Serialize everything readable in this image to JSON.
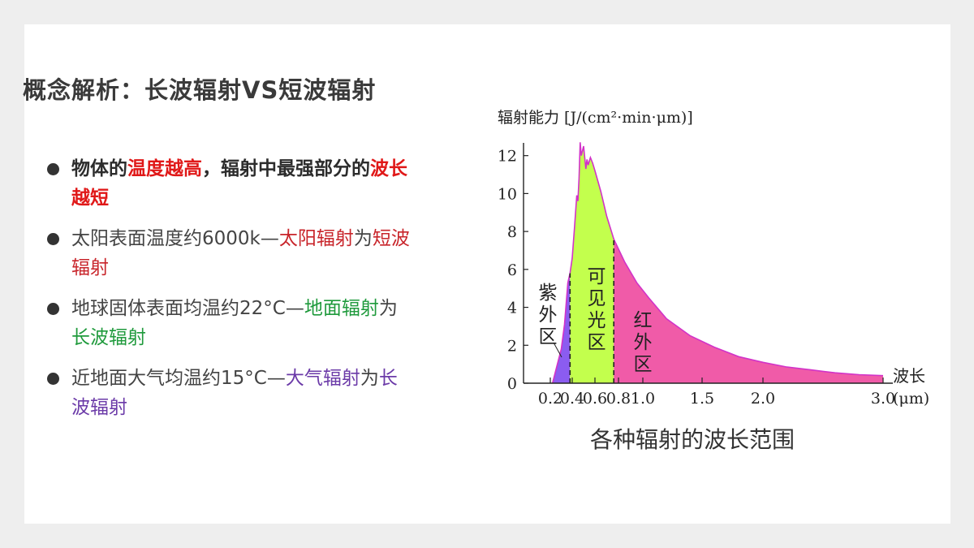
{
  "slide": {
    "title": "概念解析：长波辐射VS短波辐射",
    "bullets": [
      {
        "parts": [
          {
            "text": "物体的",
            "color": "default"
          },
          {
            "text": "温度越高",
            "color": "red"
          },
          {
            "text": "，辐射中最强部分的",
            "color": "default"
          },
          {
            "text": "波长越短",
            "color": "red"
          }
        ]
      },
      {
        "parts": [
          {
            "text": "太阳表面温度约6000k—",
            "color": "default"
          },
          {
            "text": "太阳辐射",
            "color": "dred"
          },
          {
            "text": "为",
            "color": "default"
          },
          {
            "text": "短波辐射",
            "color": "dred"
          }
        ]
      },
      {
        "parts": [
          {
            "text": "地球固体表面均温约22°C—",
            "color": "default"
          },
          {
            "text": "地面辐射",
            "color": "green"
          },
          {
            "text": "为",
            "color": "default"
          },
          {
            "text": "长波辐射",
            "color": "green"
          }
        ]
      },
      {
        "parts": [
          {
            "text": "近地面大气均温约15°C—",
            "color": "default"
          },
          {
            "text": "大气辐射",
            "color": "purple"
          },
          {
            "text": "为",
            "color": "default"
          },
          {
            "text": "长波辐射",
            "color": "purple"
          }
        ]
      }
    ]
  },
  "chart_data": {
    "type": "area",
    "title": "各种辐射的波长范围",
    "ylabel": "辐射能力 [J/(cm²·min·μm)]",
    "xlabel": "波长",
    "x_unit": "(μm)",
    "xlim": [
      0.15,
      3.05
    ],
    "ylim": [
      0,
      12.5
    ],
    "x_ticks": [
      0.2,
      0.4,
      0.6,
      0.8,
      1.0,
      1.5,
      2.0,
      3.0
    ],
    "x_tick_labels": [
      "0.2",
      "0.4",
      "0.6",
      "0.8",
      "1.0",
      "1.5",
      "2.0",
      "3.0"
    ],
    "y_ticks": [
      0,
      2,
      4,
      6,
      8,
      10,
      12
    ],
    "y_tick_labels": [
      "0",
      "2",
      "4",
      "6",
      "8",
      "10",
      "12"
    ],
    "curve": {
      "x": [
        0.22,
        0.26,
        0.3,
        0.33,
        0.36,
        0.38,
        0.4,
        0.42,
        0.44,
        0.45,
        0.46,
        0.47,
        0.48,
        0.5,
        0.52,
        0.53,
        0.54,
        0.56,
        0.58,
        0.6,
        0.65,
        0.7,
        0.76,
        0.85,
        0.95,
        1.05,
        1.2,
        1.4,
        1.6,
        1.8,
        2.0,
        2.2,
        2.4,
        2.6,
        2.8,
        3.0
      ],
      "y": [
        0.0,
        0.9,
        1.8,
        3.1,
        5.3,
        5.8,
        6.6,
        8.2,
        9.9,
        9.6,
        10.8,
        12.7,
        12.0,
        12.5,
        11.3,
        11.8,
        11.5,
        11.9,
        11.6,
        11.2,
        10.1,
        8.8,
        7.6,
        6.4,
        5.3,
        4.5,
        3.4,
        2.5,
        1.9,
        1.4,
        1.1,
        0.85,
        0.7,
        0.55,
        0.45,
        0.4
      ]
    },
    "regions": [
      {
        "name": "紫外区",
        "x_range": [
          0.22,
          0.38
        ],
        "color": "#8b5cf0"
      },
      {
        "name": "可见光区",
        "x_range": [
          0.38,
          0.76
        ],
        "color": "#c3ff4d"
      },
      {
        "name": "红外区",
        "x_range": [
          0.76,
          3.0
        ],
        "color": "#f05ba8"
      }
    ],
    "dividers_x": [
      0.38,
      0.76
    ],
    "curve_color": "#d233c8"
  }
}
